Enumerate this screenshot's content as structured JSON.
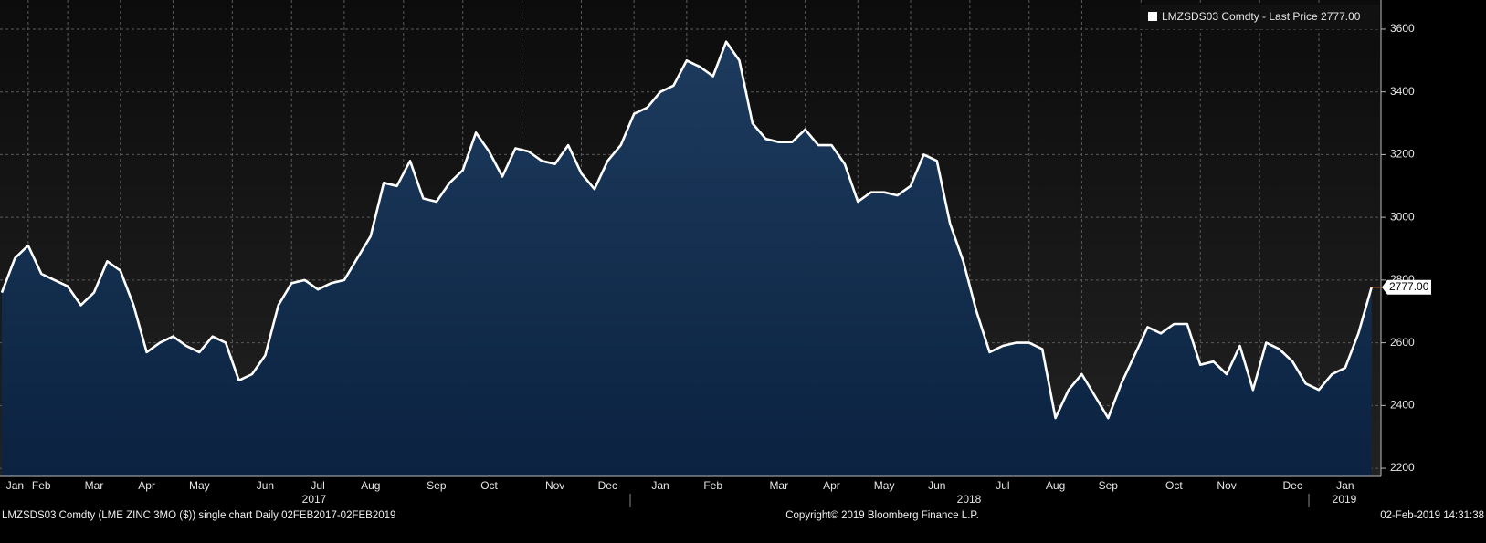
{
  "chart_data": {
    "type": "area",
    "legend": "LMZSDS03 Comdty  - Last Price 2777.00",
    "last_value_label": "2777.00",
    "categories": [
      null,
      "Jan",
      null,
      "Feb",
      null,
      null,
      null,
      "Mar",
      null,
      null,
      null,
      "Apr",
      null,
      null,
      null,
      "May",
      null,
      null,
      null,
      null,
      "Jun",
      null,
      null,
      null,
      "Jul",
      null,
      null,
      null,
      "Aug",
      null,
      null,
      null,
      null,
      "Sep",
      null,
      null,
      null,
      "Oct",
      null,
      null,
      null,
      null,
      "Nov",
      null,
      null,
      null,
      "Dec",
      null,
      null,
      null,
      "Jan",
      null,
      null,
      null,
      "Feb",
      null,
      null,
      null,
      null,
      "Mar",
      null,
      null,
      null,
      "Apr",
      null,
      null,
      null,
      "May",
      null,
      null,
      null,
      "Jun",
      null,
      null,
      null,
      null,
      "Jul",
      null,
      null,
      null,
      "Aug",
      null,
      null,
      null,
      "Sep",
      null,
      null,
      null,
      null,
      "Oct",
      null,
      null,
      null,
      "Nov",
      null,
      null,
      null,
      null,
      "Dec",
      null,
      null,
      null,
      "Jan",
      null,
      null
    ],
    "year_labels": [
      "2017",
      "2018",
      "2019"
    ],
    "series": [
      {
        "name": "LMZSDS03 Comdty",
        "color": "#ffffff",
        "values": [
          2760,
          2870,
          2910,
          2820,
          2800,
          2780,
          2720,
          2760,
          2860,
          2830,
          2720,
          2570,
          2600,
          2620,
          2590,
          2570,
          2620,
          2600,
          2480,
          2500,
          2560,
          2720,
          2790,
          2800,
          2770,
          2790,
          2800,
          2870,
          2940,
          3110,
          3100,
          3180,
          3060,
          3050,
          3110,
          3150,
          3270,
          3210,
          3130,
          3220,
          3210,
          3180,
          3170,
          3230,
          3140,
          3090,
          3180,
          3230,
          3330,
          3350,
          3400,
          3420,
          3500,
          3480,
          3450,
          3560,
          3500,
          3300,
          3250,
          3240,
          3240,
          3280,
          3230,
          3230,
          3170,
          3050,
          3080,
          3080,
          3070,
          3100,
          3200,
          3180,
          2980,
          2860,
          2700,
          2570,
          2590,
          2600,
          2600,
          2580,
          2360,
          2450,
          2500,
          2430,
          2360,
          2470,
          2560,
          2650,
          2630,
          2660,
          2660,
          2530,
          2540,
          2500,
          2590,
          2450,
          2600,
          2580,
          2540,
          2470,
          2450,
          2500,
          2520,
          2630,
          2777
        ]
      }
    ],
    "ylim": [
      2174,
      3693
    ],
    "yticks": [
      2200,
      2400,
      2600,
      2800,
      3000,
      3200,
      3400,
      3600
    ],
    "grid": true,
    "footer": {
      "left": "LMZSDS03 Comdty (LME ZINC     3MO ($))  single chart  Daily 02FEB2017-02FEB2019",
      "center": "Copyright© 2019 Bloomberg Finance L.P.",
      "right": "02-Feb-2019 14:31:38"
    }
  }
}
